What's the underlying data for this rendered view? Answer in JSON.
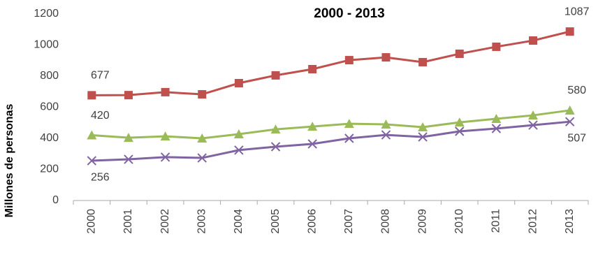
{
  "chart_data": {
    "type": "line",
    "title": "2000 - 2013",
    "y_label": "Millones de personas",
    "categories": [
      "2000",
      "2001",
      "2002",
      "2003",
      "2004",
      "2005",
      "2006",
      "2007",
      "2008",
      "2009",
      "2010",
      "2011",
      "2012",
      "2013"
    ],
    "series": [
      {
        "color": "#c0504d",
        "marker": "square",
        "label_position": "above",
        "values": [
          677,
          678,
          697,
          683,
          755,
          805,
          845,
          903,
          921,
          890,
          944,
          989,
          1029,
          1087
        ]
      },
      {
        "color": "#9bbb59",
        "marker": "triangle",
        "label_position": "above",
        "values": [
          420,
          404,
          413,
          400,
          427,
          458,
          476,
          494,
          490,
          472,
          503,
          526,
          548,
          580
        ]
      },
      {
        "color": "#8064a2",
        "marker": "x",
        "label_position": "below",
        "values": [
          256,
          265,
          279,
          274,
          324,
          346,
          364,
          400,
          422,
          409,
          445,
          463,
          485,
          507
        ]
      }
    ],
    "data_labels": "ends",
    "ylim": [
      0,
      1200
    ],
    "yticks": [
      0,
      200,
      400,
      600,
      800,
      1000,
      1200
    ],
    "grid": false
  }
}
